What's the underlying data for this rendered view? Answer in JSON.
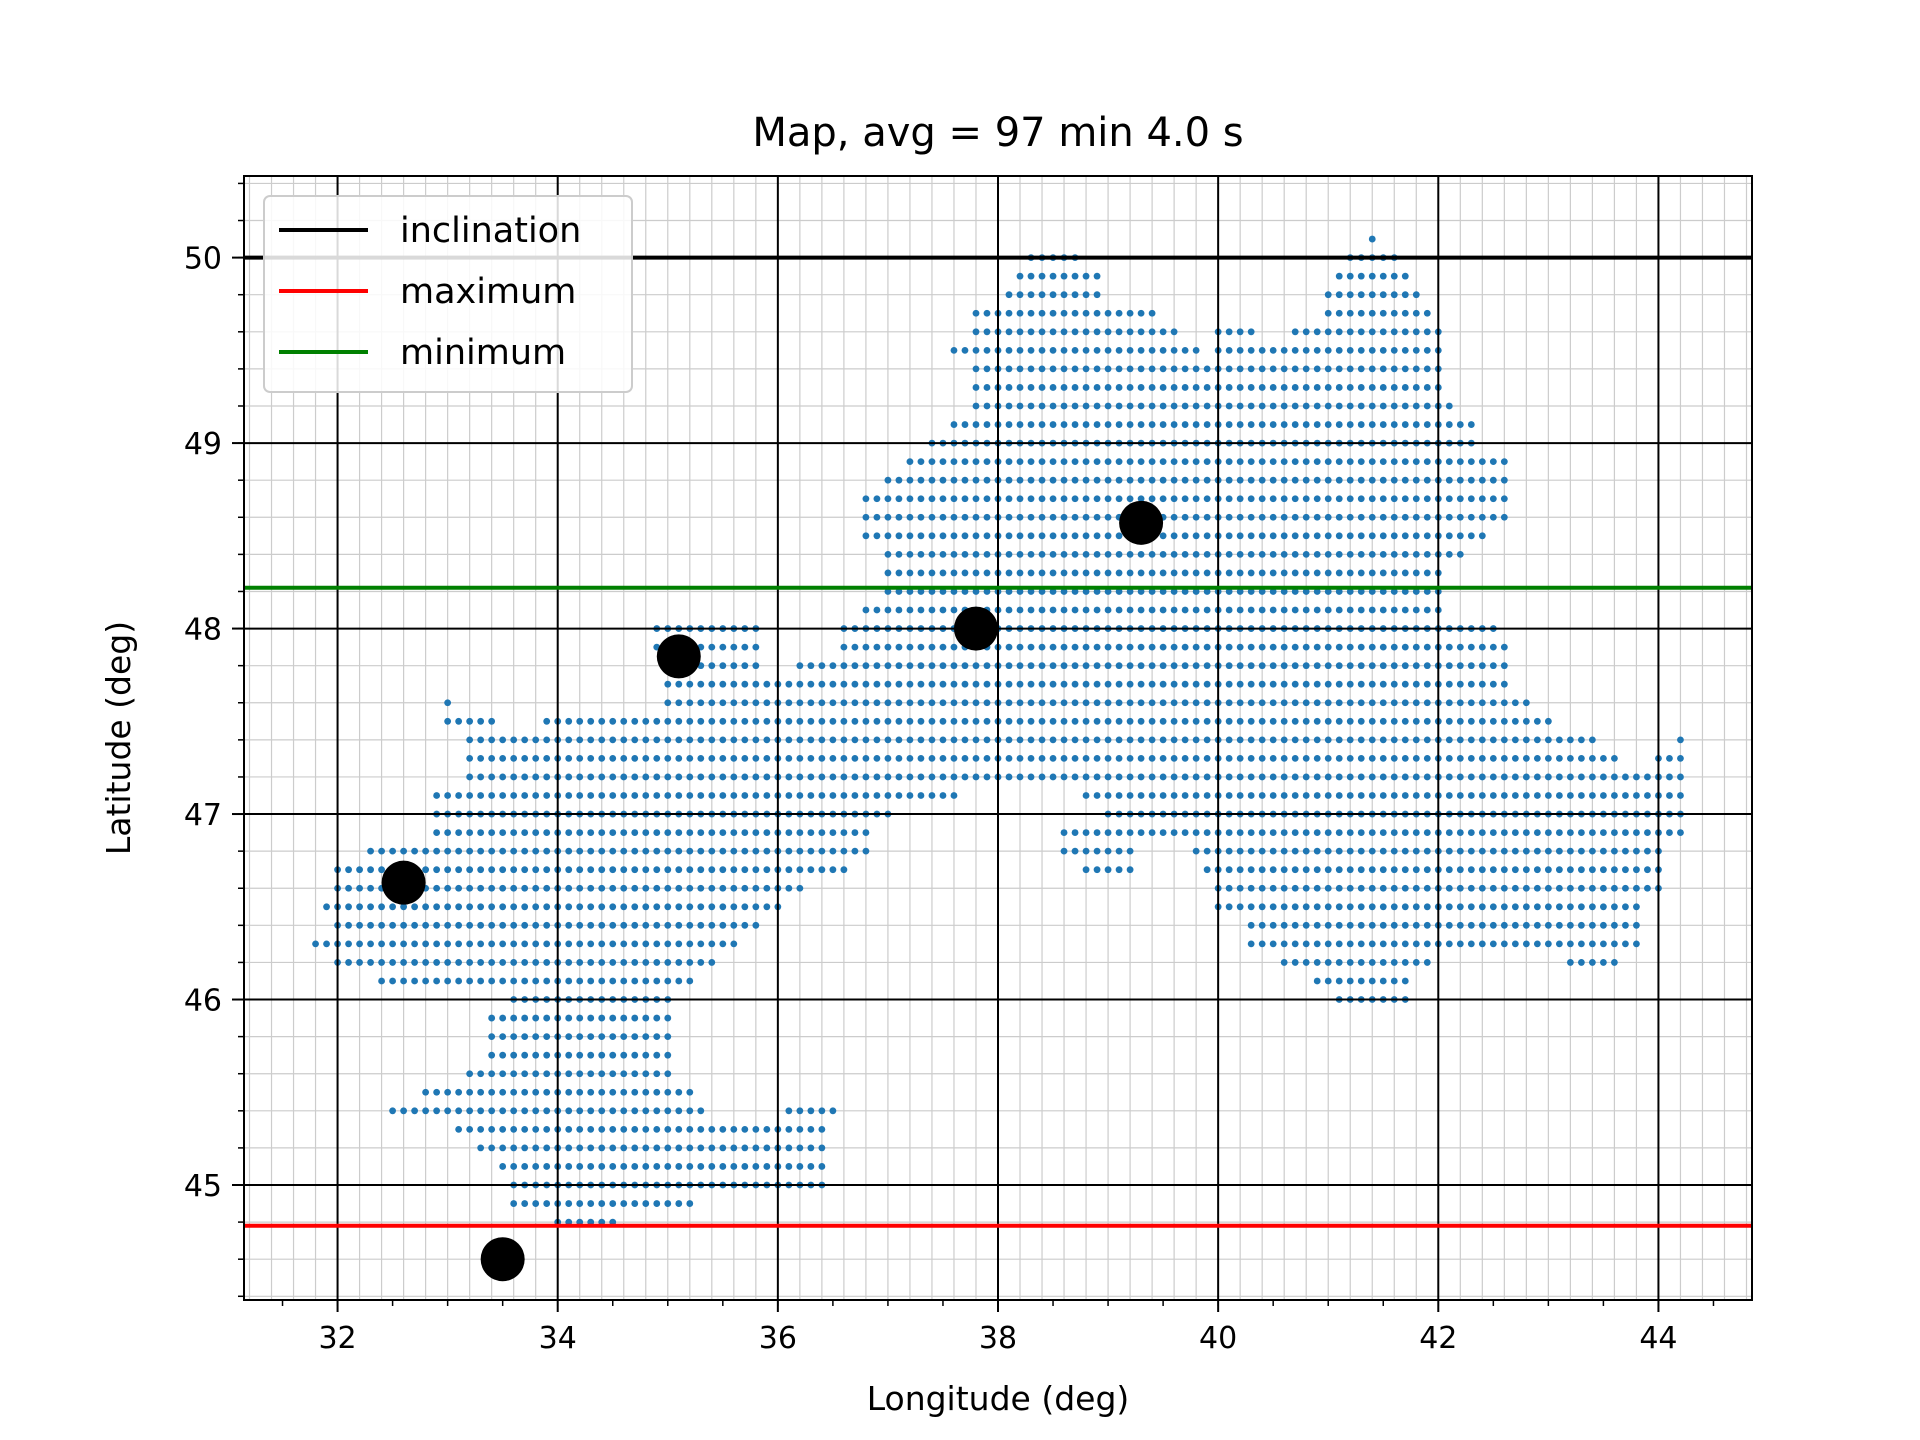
{
  "chart_data": {
    "type": "scatter",
    "title": "Map, avg = 97 min 4.0 s",
    "xlabel": "Longitude (deg)",
    "ylabel": "Latitude (deg)",
    "xlim": [
      31.15,
      44.85
    ],
    "ylim": [
      44.38,
      50.44
    ],
    "xticks": [
      32,
      34,
      36,
      38,
      40,
      42,
      44
    ],
    "yticks": [
      45,
      46,
      47,
      48,
      49,
      50
    ],
    "grid": true,
    "legend_position": "upper-left",
    "grid_spacing_deg": 0.2,
    "region_color": "#1f77b4",
    "lines": [
      {
        "name": "inclination",
        "y": 50.0,
        "color": "#000000"
      },
      {
        "name": "maximum",
        "y": 44.78,
        "color": "#ff0000"
      },
      {
        "name": "minimum",
        "y": 48.22,
        "color": "#008000"
      }
    ],
    "points": [
      {
        "x": 32.6,
        "y": 46.63
      },
      {
        "x": 33.5,
        "y": 44.6
      },
      {
        "x": 35.1,
        "y": 47.85
      },
      {
        "x": 37.8,
        "y": 48.0
      },
      {
        "x": 39.3,
        "y": 48.57
      }
    ],
    "points_color": "#000000",
    "region_rows": [
      {
        "y": 50.1,
        "x": [
          [
            41.4,
            41.4
          ]
        ]
      },
      {
        "y": 50.0,
        "x": [
          [
            38.3,
            38.7
          ],
          [
            41.2,
            41.6
          ]
        ]
      },
      {
        "y": 49.9,
        "x": [
          [
            38.2,
            38.9
          ],
          [
            41.1,
            41.7
          ]
        ]
      },
      {
        "y": 49.8,
        "x": [
          [
            38.1,
            38.9
          ],
          [
            41.0,
            41.8
          ]
        ]
      },
      {
        "y": 49.7,
        "x": [
          [
            37.8,
            39.4
          ],
          [
            41.0,
            41.9
          ]
        ]
      },
      {
        "y": 49.6,
        "x": [
          [
            37.8,
            39.6
          ],
          [
            40.0,
            40.3
          ],
          [
            40.7,
            42.0
          ]
        ]
      },
      {
        "y": 49.5,
        "x": [
          [
            37.6,
            39.8
          ],
          [
            40.0,
            42.0
          ]
        ]
      },
      {
        "y": 49.4,
        "x": [
          [
            37.8,
            42.0
          ]
        ]
      },
      {
        "y": 49.3,
        "x": [
          [
            37.8,
            42.0
          ]
        ]
      },
      {
        "y": 49.2,
        "x": [
          [
            37.8,
            42.1
          ]
        ]
      },
      {
        "y": 49.1,
        "x": [
          [
            37.6,
            42.3
          ]
        ]
      },
      {
        "y": 49.0,
        "x": [
          [
            37.4,
            42.3
          ]
        ]
      },
      {
        "y": 48.9,
        "x": [
          [
            37.2,
            42.6
          ]
        ]
      },
      {
        "y": 48.8,
        "x": [
          [
            37.0,
            42.6
          ]
        ]
      },
      {
        "y": 48.7,
        "x": [
          [
            36.8,
            42.6
          ]
        ]
      },
      {
        "y": 48.6,
        "x": [
          [
            36.8,
            42.6
          ]
        ]
      },
      {
        "y": 48.5,
        "x": [
          [
            36.8,
            42.4
          ]
        ]
      },
      {
        "y": 48.4,
        "x": [
          [
            37.0,
            42.2
          ]
        ]
      },
      {
        "y": 48.3,
        "x": [
          [
            37.0,
            42.0
          ]
        ]
      },
      {
        "y": 48.2,
        "x": [
          [
            37.0,
            42.0
          ]
        ]
      },
      {
        "y": 48.1,
        "x": [
          [
            36.8,
            42.0
          ]
        ]
      },
      {
        "y": 48.0,
        "x": [
          [
            34.9,
            35.8
          ],
          [
            36.6,
            42.5
          ]
        ]
      },
      {
        "y": 47.9,
        "x": [
          [
            34.9,
            35.8
          ],
          [
            36.6,
            42.6
          ]
        ]
      },
      {
        "y": 47.8,
        "x": [
          [
            35.0,
            35.8
          ],
          [
            36.2,
            42.6
          ]
        ]
      },
      {
        "y": 47.7,
        "x": [
          [
            35.0,
            42.6
          ]
        ]
      },
      {
        "y": 47.6,
        "x": [
          [
            33.0,
            33.0
          ],
          [
            35.0,
            42.8
          ]
        ]
      },
      {
        "y": 47.5,
        "x": [
          [
            33.0,
            33.4
          ],
          [
            33.9,
            43.0
          ]
        ]
      },
      {
        "y": 47.4,
        "x": [
          [
            33.2,
            43.4
          ],
          [
            44.2,
            44.2
          ]
        ]
      },
      {
        "y": 47.3,
        "x": [
          [
            33.2,
            43.6
          ],
          [
            44.0,
            44.2
          ]
        ]
      },
      {
        "y": 47.2,
        "x": [
          [
            33.2,
            44.2
          ]
        ]
      },
      {
        "y": 47.1,
        "x": [
          [
            32.9,
            37.6
          ],
          [
            38.8,
            44.2
          ]
        ]
      },
      {
        "y": 47.0,
        "x": [
          [
            32.9,
            37.0
          ],
          [
            39.0,
            44.2
          ]
        ]
      },
      {
        "y": 46.9,
        "x": [
          [
            32.9,
            36.8
          ],
          [
            38.6,
            44.2
          ]
        ]
      },
      {
        "y": 46.8,
        "x": [
          [
            32.3,
            36.8
          ],
          [
            38.6,
            39.2
          ],
          [
            39.8,
            44.0
          ]
        ]
      },
      {
        "y": 46.7,
        "x": [
          [
            32.0,
            36.6
          ],
          [
            38.8,
            39.2
          ],
          [
            39.9,
            44.0
          ]
        ]
      },
      {
        "y": 46.6,
        "x": [
          [
            32.0,
            36.2
          ],
          [
            40.0,
            44.0
          ]
        ]
      },
      {
        "y": 46.5,
        "x": [
          [
            31.9,
            36.0
          ],
          [
            40.0,
            43.8
          ]
        ]
      },
      {
        "y": 46.4,
        "x": [
          [
            32.0,
            35.8
          ],
          [
            40.3,
            43.8
          ]
        ]
      },
      {
        "y": 46.3,
        "x": [
          [
            31.8,
            35.6
          ],
          [
            40.3,
            43.8
          ]
        ]
      },
      {
        "y": 46.2,
        "x": [
          [
            32.0,
            35.4
          ],
          [
            40.6,
            41.9
          ],
          [
            43.2,
            43.6
          ]
        ]
      },
      {
        "y": 46.1,
        "x": [
          [
            32.4,
            35.2
          ],
          [
            40.9,
            41.7
          ]
        ]
      },
      {
        "y": 46.0,
        "x": [
          [
            33.6,
            35.0
          ],
          [
            41.1,
            41.7
          ]
        ]
      },
      {
        "y": 45.9,
        "x": [
          [
            33.4,
            35.0
          ]
        ]
      },
      {
        "y": 45.8,
        "x": [
          [
            33.4,
            35.0
          ]
        ]
      },
      {
        "y": 45.7,
        "x": [
          [
            33.4,
            35.0
          ]
        ]
      },
      {
        "y": 45.6,
        "x": [
          [
            33.2,
            35.0
          ]
        ]
      },
      {
        "y": 45.5,
        "x": [
          [
            32.8,
            35.2
          ]
        ]
      },
      {
        "y": 45.4,
        "x": [
          [
            32.5,
            35.3
          ],
          [
            36.1,
            36.5
          ]
        ]
      },
      {
        "y": 45.3,
        "x": [
          [
            33.1,
            36.4
          ]
        ]
      },
      {
        "y": 45.2,
        "x": [
          [
            33.3,
            36.4
          ]
        ]
      },
      {
        "y": 45.1,
        "x": [
          [
            33.5,
            36.4
          ]
        ]
      },
      {
        "y": 45.0,
        "x": [
          [
            33.6,
            36.4
          ]
        ]
      },
      {
        "y": 44.9,
        "x": [
          [
            33.6,
            35.2
          ]
        ]
      },
      {
        "y": 44.8,
        "x": [
          [
            34.0,
            34.5
          ]
        ]
      }
    ]
  }
}
